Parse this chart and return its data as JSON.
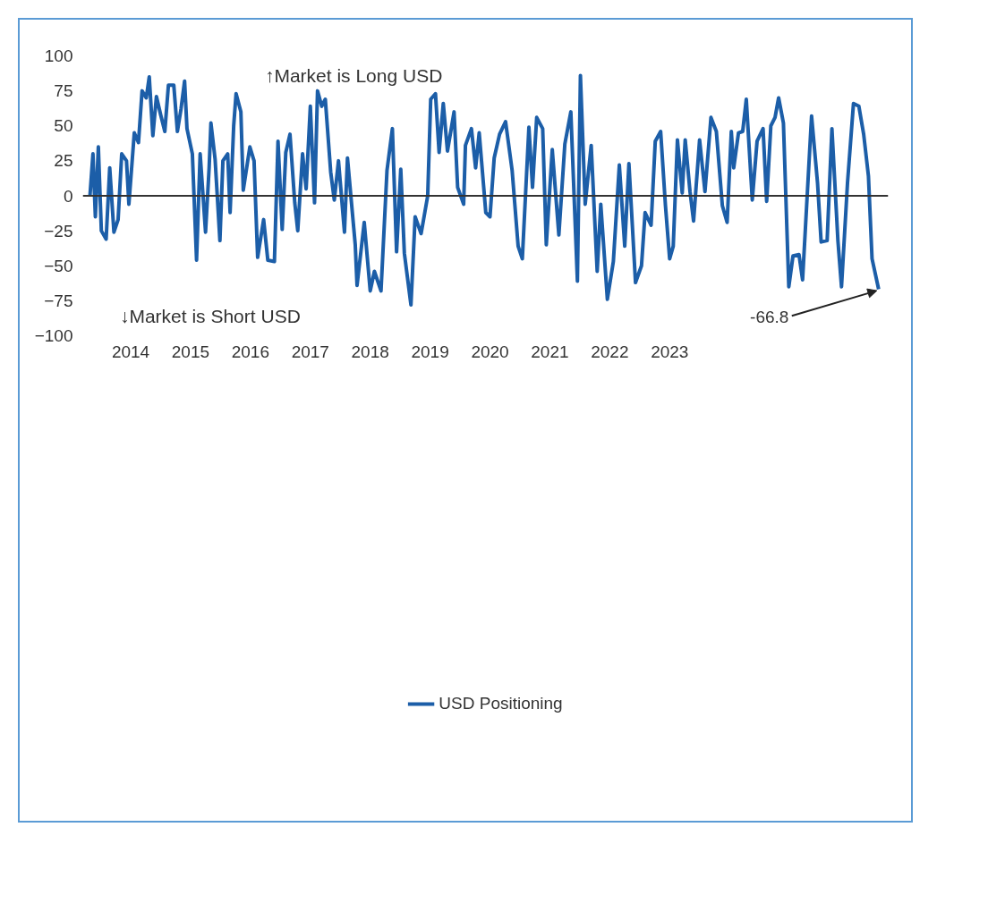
{
  "chart_data": {
    "type": "line",
    "legend": "bottom",
    "x": [
      2013.32,
      2013.37,
      2013.41,
      2013.46,
      2013.51,
      2013.59,
      2013.65,
      2013.72,
      2013.79,
      2013.85,
      2013.93,
      2013.97,
      2014.06,
      2014.13,
      2014.19,
      2014.26,
      2014.31,
      2014.37,
      2014.43,
      2014.5,
      2014.57,
      2014.63,
      2014.72,
      2014.78,
      2014.84,
      2014.9,
      2014.94,
      2015.03,
      2015.1,
      2015.16,
      2015.25,
      2015.31,
      2015.34,
      2015.41,
      2015.49,
      2015.54,
      2015.62,
      2015.66,
      2015.72,
      2015.76,
      2015.84,
      2015.88,
      2015.99,
      2016.06,
      2016.12,
      2016.22,
      2016.29,
      2016.4,
      2016.46,
      2016.53,
      2016.59,
      2016.66,
      2016.74,
      2016.79,
      2016.87,
      2016.93,
      2017.0,
      2017.07,
      2017.12,
      2017.19,
      2017.25,
      2017.34,
      2017.4,
      2017.47,
      2017.57,
      2017.62,
      2017.75,
      2017.78,
      2017.9,
      2018.0,
      2018.07,
      2018.18,
      2018.28,
      2018.37,
      2018.44,
      2018.51,
      2018.57,
      2018.68,
      2018.75,
      2018.85,
      2018.96,
      2019.01,
      2019.09,
      2019.15,
      2019.22,
      2019.29,
      2019.4,
      2019.46,
      2019.56,
      2019.59,
      2019.69,
      2019.76,
      2019.82,
      2019.93,
      2020.0,
      2020.07,
      2020.16,
      2020.26,
      2020.37,
      2020.47,
      2020.54,
      2020.65,
      2020.71,
      2020.78,
      2020.88,
      2020.94,
      2021.04,
      2021.15,
      2021.25,
      2021.35,
      2021.46,
      2021.51,
      2021.59,
      2021.69,
      2021.79,
      2021.85,
      2021.96,
      2022.06,
      2022.16,
      2022.25,
      2022.32,
      2022.43,
      2022.53,
      2022.59,
      2022.69,
      2022.76,
      2022.85,
      2022.93,
      2023.0,
      2023.06,
      2023.13,
      2023.21,
      2023.26,
      2023.34,
      2023.4,
      2023.5,
      2023.59,
      2023.69,
      2023.78,
      2023.88,
      2023.96,
      2024.03,
      2024.07,
      2024.15,
      2024.22,
      2024.28,
      2024.38,
      2024.46,
      2024.56,
      2024.62,
      2024.69,
      2024.76,
      2024.82,
      2024.9,
      2024.99,
      2025.06,
      2025.16,
      2025.22,
      2025.37,
      2025.47,
      2025.53,
      2025.63,
      2025.71,
      2025.81,
      2025.87,
      2025.97,
      2026.07,
      2026.16,
      2026.24,
      2026.32,
      2026.38,
      2026.49
    ],
    "series": [
      {
        "name": "USD Positioning",
        "color": "#1c5ea8",
        "values": [
          0,
          30,
          -15,
          35,
          -25,
          -31,
          20,
          -26,
          -17,
          30,
          25,
          -6,
          45,
          38,
          75,
          70,
          85,
          43,
          71,
          58,
          46,
          79,
          79,
          46,
          62,
          82,
          48,
          30,
          -46,
          30,
          -26,
          20,
          52,
          26,
          -32,
          25,
          30,
          -12,
          50,
          73,
          60,
          4,
          35,
          25,
          -44,
          -17,
          -46,
          -47,
          39,
          -24,
          31,
          44,
          -5,
          -25,
          30,
          5,
          64,
          -5,
          75,
          64,
          69,
          17,
          -3,
          25,
          -26,
          27,
          -35,
          -64,
          -19,
          -68,
          -54,
          -68,
          18,
          48,
          -40,
          19,
          -41,
          -78,
          -15,
          -27,
          0,
          69,
          73,
          31,
          66,
          32,
          60,
          6,
          -6,
          36,
          48,
          20,
          45,
          -12,
          -15,
          27,
          44,
          53,
          18,
          -36,
          -45,
          49,
          6,
          56,
          48,
          -35,
          33,
          -28,
          37,
          60,
          -61,
          86,
          -6,
          36,
          -54,
          -6,
          -74,
          -47,
          22,
          -36,
          23,
          -62,
          -50,
          -12,
          -21,
          39,
          46,
          -7,
          -45,
          -36,
          40,
          2,
          40,
          3,
          -18,
          40,
          3,
          56,
          46,
          -7,
          -19,
          46,
          20,
          45,
          46,
          69,
          -3,
          39,
          48,
          -4,
          50,
          56,
          70,
          52,
          -65,
          -43,
          -42,
          -60,
          57,
          9,
          -33,
          -32,
          48,
          -32,
          -65,
          9,
          66,
          64,
          44,
          14,
          -45,
          -66.8
        ]
      }
    ],
    "xlim": [
      2013.2,
      2026.65
    ],
    "xticks": [
      2014,
      2015,
      2016,
      2017,
      2018,
      2019,
      2020,
      2021,
      2022,
      2023
    ],
    "ylim": [
      -100,
      100
    ],
    "yticks": [
      -100,
      -75,
      -50,
      -25,
      0,
      25,
      50,
      75,
      100
    ],
    "ref_lines": [
      {
        "axis": "y",
        "value": 0,
        "color": "#333333"
      }
    ],
    "annotations": [
      "↑Market is Long USD",
      "↓Market is Short USD",
      {
        "text": "-66.8",
        "x": 2026.49,
        "y": -66.8
      }
    ]
  }
}
